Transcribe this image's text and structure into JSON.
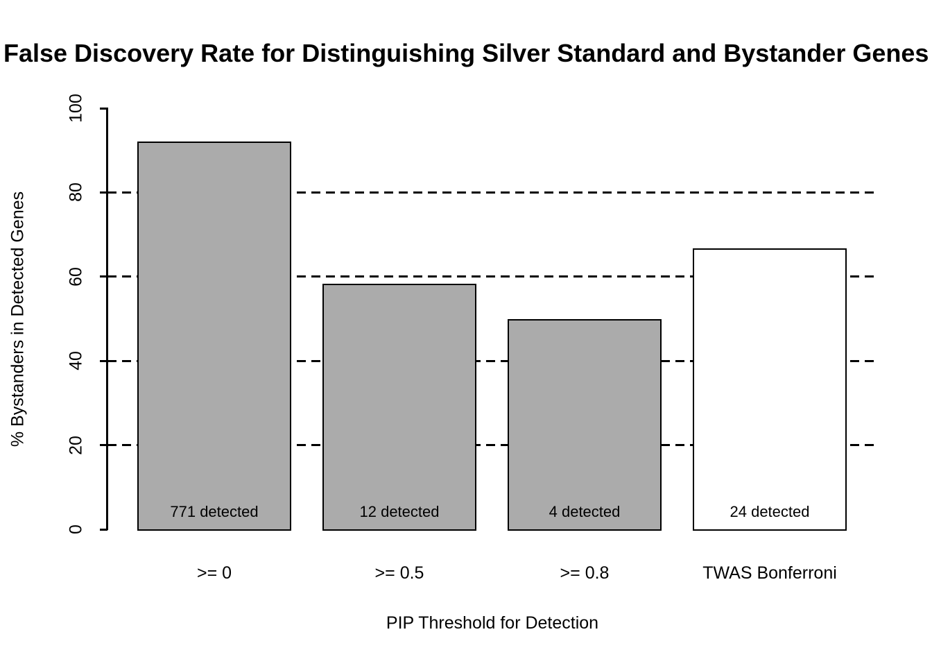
{
  "title": "False Discovery Rate for Distinguishing Silver Standard and Bystander Genes",
  "chart_data": {
    "type": "bar",
    "title": "False Discovery Rate for Distinguishing Silver Standard and Bystander Genes",
    "categories": [
      ">= 0",
      ">= 0.5",
      ">= 0.8",
      "TWAS Bonferroni"
    ],
    "values": [
      92.1,
      58.3,
      50.0,
      66.7
    ],
    "bar_labels": [
      "771 detected",
      "12 detected",
      "4 detected",
      "24 detected"
    ],
    "bar_colors": [
      "#ABABAB",
      "#ABABAB",
      "#ABABAB",
      "#FFFFFF"
    ],
    "bar_border_color": "#000000",
    "xlabel": "PIP Threshold for Detection",
    "ylabel": "% Bystanders in Detected Genes",
    "ylim": [
      0,
      100
    ],
    "yticks": [
      0,
      20,
      40,
      60,
      80,
      100
    ],
    "gridlines": [
      20,
      40,
      60,
      80
    ],
    "grid_style": "dashed",
    "legend_position": "none",
    "background_color": "#FFFFFF",
    "text_color": "#000000"
  }
}
